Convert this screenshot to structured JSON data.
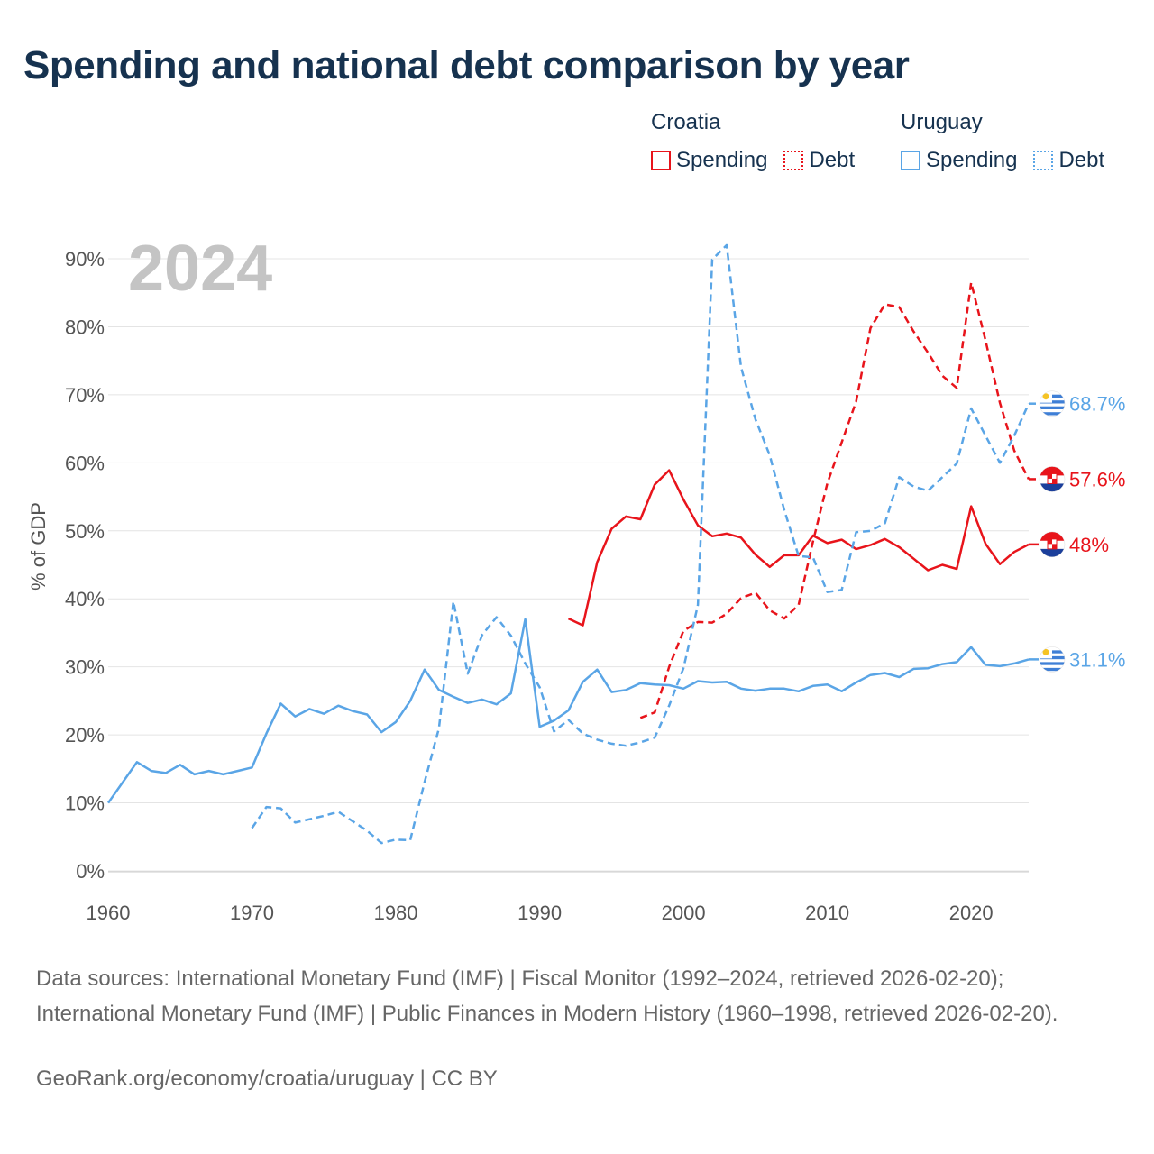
{
  "title": "Spending and national debt comparison by year",
  "legend": {
    "croatia": {
      "country": "Croatia",
      "spending": "Spending",
      "debt": "Debt"
    },
    "uruguay": {
      "country": "Uruguay",
      "spending": "Spending",
      "debt": "Debt"
    }
  },
  "colors": {
    "croatia": "#e8141b",
    "uruguay": "#5aa5e6",
    "grid": "#e4e4e4",
    "axis_text": "#555555",
    "year_watermark": "#c4c4c4"
  },
  "footer": {
    "sources": "Data sources: International Monetary Fund (IMF) | Fiscal Monitor (1992–2024, retrieved 2026-02-20); International Monetary Fund (IMF) | Public Finances in Modern History (1960–1998, retrieved 2026-02-20).",
    "credit": "GeoRank.org/economy/croatia/uruguay | CC BY"
  },
  "chart_data": {
    "type": "line",
    "year_label": "2024",
    "ylabel": "% of GDP",
    "xlim": [
      1960,
      2024
    ],
    "ylim": [
      0,
      90
    ],
    "x_ticks": [
      1960,
      1970,
      1980,
      1990,
      2000,
      2010,
      2020
    ],
    "y_ticks": [
      0,
      10,
      20,
      30,
      40,
      50,
      60,
      70,
      80,
      90
    ],
    "y_tick_labels": [
      "0%",
      "10%",
      "20%",
      "30%",
      "40%",
      "50%",
      "60%",
      "70%",
      "80%",
      "90%"
    ],
    "series": [
      {
        "name": "Croatia Spending",
        "country": "croatia",
        "dashed": false,
        "end_label": "48%",
        "points": [
          [
            1992,
            37.1
          ],
          [
            1993,
            36.1
          ],
          [
            1994,
            45.4
          ],
          [
            1995,
            50.3
          ],
          [
            1996,
            52.1
          ],
          [
            1997,
            51.7
          ],
          [
            1998,
            56.8
          ],
          [
            1999,
            58.9
          ],
          [
            2000,
            54.6
          ],
          [
            2001,
            50.8
          ],
          [
            2002,
            49.2
          ],
          [
            2003,
            49.6
          ],
          [
            2004,
            49.0
          ],
          [
            2005,
            46.5
          ],
          [
            2006,
            44.7
          ],
          [
            2007,
            46.4
          ],
          [
            2008,
            46.4
          ],
          [
            2009,
            49.3
          ],
          [
            2010,
            48.2
          ],
          [
            2011,
            48.7
          ],
          [
            2012,
            47.3
          ],
          [
            2013,
            47.9
          ],
          [
            2014,
            48.8
          ],
          [
            2015,
            47.6
          ],
          [
            2016,
            45.9
          ],
          [
            2017,
            44.2
          ],
          [
            2018,
            45.0
          ],
          [
            2019,
            44.4
          ],
          [
            2020,
            53.6
          ],
          [
            2021,
            48.1
          ],
          [
            2022,
            45.1
          ],
          [
            2023,
            46.9
          ],
          [
            2024,
            48.0
          ]
        ]
      },
      {
        "name": "Croatia Debt",
        "country": "croatia",
        "dashed": true,
        "end_label": "57.6%",
        "points": [
          [
            1997,
            22.5
          ],
          [
            1998,
            23.3
          ],
          [
            1999,
            30.0
          ],
          [
            2000,
            35.3
          ],
          [
            2001,
            36.6
          ],
          [
            2002,
            36.5
          ],
          [
            2003,
            37.8
          ],
          [
            2004,
            40.1
          ],
          [
            2005,
            40.9
          ],
          [
            2006,
            38.3
          ],
          [
            2007,
            37.1
          ],
          [
            2008,
            39.1
          ],
          [
            2009,
            48.4
          ],
          [
            2010,
            57.0
          ],
          [
            2011,
            63.0
          ],
          [
            2012,
            69.0
          ],
          [
            2013,
            79.8
          ],
          [
            2014,
            83.3
          ],
          [
            2015,
            82.9
          ],
          [
            2016,
            79.3
          ],
          [
            2017,
            76.2
          ],
          [
            2018,
            72.8
          ],
          [
            2019,
            71.0
          ],
          [
            2020,
            86.5
          ],
          [
            2021,
            78.0
          ],
          [
            2022,
            68.8
          ],
          [
            2023,
            61.8
          ],
          [
            2024,
            57.6
          ]
        ]
      },
      {
        "name": "Uruguay Spending",
        "country": "uruguay",
        "dashed": false,
        "end_label": "31.1%",
        "points": [
          [
            1960,
            10.0
          ],
          [
            1961,
            13.0
          ],
          [
            1962,
            16.0
          ],
          [
            1963,
            14.7
          ],
          [
            1964,
            14.4
          ],
          [
            1965,
            15.6
          ],
          [
            1966,
            14.2
          ],
          [
            1967,
            14.7
          ],
          [
            1968,
            14.2
          ],
          [
            1969,
            14.7
          ],
          [
            1970,
            15.2
          ],
          [
            1971,
            20.2
          ],
          [
            1972,
            24.6
          ],
          [
            1973,
            22.7
          ],
          [
            1974,
            23.8
          ],
          [
            1975,
            23.1
          ],
          [
            1976,
            24.3
          ],
          [
            1977,
            23.5
          ],
          [
            1978,
            23.0
          ],
          [
            1979,
            20.4
          ],
          [
            1980,
            21.9
          ],
          [
            1981,
            25.0
          ],
          [
            1982,
            29.6
          ],
          [
            1983,
            26.6
          ],
          [
            1984,
            25.6
          ],
          [
            1985,
            24.7
          ],
          [
            1986,
            25.2
          ],
          [
            1987,
            24.5
          ],
          [
            1988,
            26.1
          ],
          [
            1989,
            37.0
          ],
          [
            1990,
            21.2
          ],
          [
            1991,
            22.1
          ],
          [
            1992,
            23.6
          ],
          [
            1993,
            27.8
          ],
          [
            1994,
            29.6
          ],
          [
            1995,
            26.3
          ],
          [
            1996,
            26.6
          ],
          [
            1997,
            27.6
          ],
          [
            1998,
            27.4
          ],
          [
            1999,
            27.3
          ],
          [
            2000,
            26.8
          ],
          [
            2001,
            27.9
          ],
          [
            2002,
            27.7
          ],
          [
            2003,
            27.8
          ],
          [
            2004,
            26.8
          ],
          [
            2005,
            26.5
          ],
          [
            2006,
            26.8
          ],
          [
            2007,
            26.8
          ],
          [
            2008,
            26.4
          ],
          [
            2009,
            27.2
          ],
          [
            2010,
            27.4
          ],
          [
            2011,
            26.4
          ],
          [
            2012,
            27.7
          ],
          [
            2013,
            28.8
          ],
          [
            2014,
            29.1
          ],
          [
            2015,
            28.5
          ],
          [
            2016,
            29.7
          ],
          [
            2017,
            29.8
          ],
          [
            2018,
            30.4
          ],
          [
            2019,
            30.7
          ],
          [
            2020,
            32.9
          ],
          [
            2021,
            30.3
          ],
          [
            2022,
            30.1
          ],
          [
            2023,
            30.5
          ],
          [
            2024,
            31.1
          ]
        ]
      },
      {
        "name": "Uruguay Debt",
        "country": "uruguay",
        "dashed": true,
        "end_label": "68.7%",
        "points": [
          [
            1970,
            6.3
          ],
          [
            1971,
            9.4
          ],
          [
            1972,
            9.2
          ],
          [
            1973,
            7.1
          ],
          [
            1974,
            7.6
          ],
          [
            1975,
            8.1
          ],
          [
            1976,
            8.7
          ],
          [
            1977,
            7.3
          ],
          [
            1978,
            5.9
          ],
          [
            1979,
            4.1
          ],
          [
            1980,
            4.6
          ],
          [
            1981,
            4.5
          ],
          [
            1982,
            13.1
          ],
          [
            1983,
            21.0
          ],
          [
            1984,
            39.6
          ],
          [
            1985,
            29.0
          ],
          [
            1986,
            34.7
          ],
          [
            1987,
            37.3
          ],
          [
            1988,
            34.6
          ],
          [
            1989,
            30.5
          ],
          [
            1990,
            27.0
          ],
          [
            1991,
            20.5
          ],
          [
            1992,
            22.2
          ],
          [
            1993,
            20.2
          ],
          [
            1994,
            19.3
          ],
          [
            1995,
            18.7
          ],
          [
            1996,
            18.4
          ],
          [
            1997,
            18.9
          ],
          [
            1998,
            19.6
          ],
          [
            1999,
            24.3
          ],
          [
            2000,
            29.8
          ],
          [
            2001,
            39.1
          ],
          [
            2002,
            89.9
          ],
          [
            2003,
            92.0
          ],
          [
            2004,
            74.1
          ],
          [
            2005,
            66.4
          ],
          [
            2006,
            61.1
          ],
          [
            2007,
            53.1
          ],
          [
            2008,
            46.3
          ],
          [
            2009,
            46.1
          ],
          [
            2010,
            41.0
          ],
          [
            2011,
            41.3
          ],
          [
            2012,
            49.8
          ],
          [
            2013,
            50.0
          ],
          [
            2014,
            51.1
          ],
          [
            2015,
            57.9
          ],
          [
            2016,
            56.5
          ],
          [
            2017,
            55.9
          ],
          [
            2018,
            57.9
          ],
          [
            2019,
            59.9
          ],
          [
            2020,
            68.0
          ],
          [
            2021,
            64.0
          ],
          [
            2022,
            60.0
          ],
          [
            2023,
            64.0
          ],
          [
            2024,
            68.7
          ]
        ]
      }
    ]
  }
}
